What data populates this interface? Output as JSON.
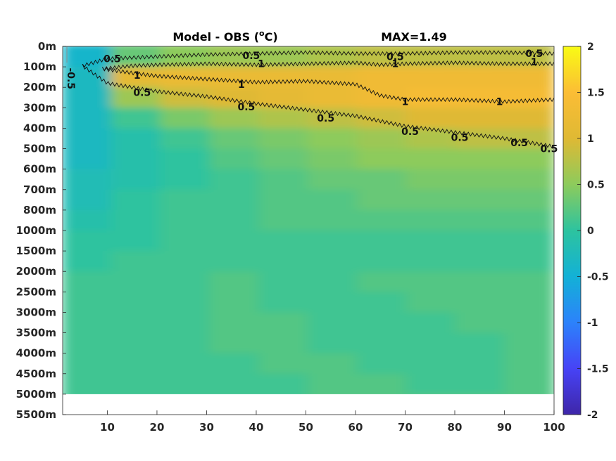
{
  "chart_data": {
    "type": "heatmap",
    "title": "Model - OBS (",
    "title_sup": "o",
    "title_unit": "C)",
    "max_label": "MAX=1.49",
    "x_ticks": [
      "10",
      "20",
      "30",
      "40",
      "50",
      "60",
      "70",
      "80",
      "90",
      "100"
    ],
    "x_tick_values": [
      10,
      20,
      30,
      40,
      50,
      60,
      70,
      80,
      90,
      100
    ],
    "xlim": [
      1,
      100
    ],
    "y_ticks": [
      "0m",
      "100m",
      "200m",
      "300m",
      "400m",
      "500m",
      "600m",
      "700m",
      "800m",
      "1000m",
      "1500m",
      "2000m",
      "2500m",
      "3000m",
      "3500m",
      "4000m",
      "4500m",
      "5000m",
      "5500m"
    ],
    "colorbar": {
      "range": [
        -2,
        2
      ],
      "ticks": [
        "2",
        "1.5",
        "1",
        "0.5",
        "0",
        "-0.5",
        "-1",
        "-1.5",
        "-2"
      ],
      "tick_values": [
        2,
        1.5,
        1,
        0.5,
        0,
        -0.5,
        -1,
        -1.5,
        -2
      ],
      "colormap": "parula"
    },
    "colormap_stops": [
      "#3e26a8",
      "#4743f6",
      "#2c82fb",
      "#13b1d6",
      "#2dc39f",
      "#8dcb5c",
      "#dfb934",
      "#fbbd35",
      "#f9fb14"
    ],
    "field_levels_by_depth": [
      {
        "depth": "0m",
        "values": [
          -0.4,
          0.3,
          0.5,
          0.6,
          0.6,
          0.7,
          0.8,
          0.8,
          0.8,
          0.8
        ]
      },
      {
        "depth": "100m",
        "values": [
          -0.3,
          1.1,
          1.2,
          1.2,
          1.2,
          1.2,
          1.3,
          1.3,
          1.3,
          1.3
        ]
      },
      {
        "depth": "200m",
        "values": [
          -0.3,
          0.6,
          0.9,
          1.0,
          1.1,
          1.2,
          1.3,
          1.4,
          1.4,
          1.4
        ]
      },
      {
        "depth": "300m",
        "values": [
          -0.3,
          0.1,
          0.4,
          0.6,
          0.7,
          0.8,
          0.9,
          1.0,
          1.0,
          1.0
        ]
      },
      {
        "depth": "400m",
        "values": [
          -0.3,
          -0.1,
          0.1,
          0.3,
          0.4,
          0.5,
          0.6,
          0.7,
          0.8,
          0.8
        ]
      },
      {
        "depth": "500m",
        "values": [
          -0.3,
          -0.1,
          0.0,
          0.2,
          0.3,
          0.4,
          0.5,
          0.5,
          0.5,
          0.5
        ]
      },
      {
        "depth": "600m",
        "values": [
          -0.2,
          -0.1,
          0.0,
          0.1,
          0.2,
          0.3,
          0.3,
          0.4,
          0.4,
          0.4
        ]
      },
      {
        "depth": "700m",
        "values": [
          -0.2,
          0.0,
          0.1,
          0.1,
          0.2,
          0.2,
          0.3,
          0.3,
          0.3,
          0.3
        ]
      },
      {
        "depth": "800m",
        "values": [
          -0.1,
          0.0,
          0.1,
          0.1,
          0.2,
          0.2,
          0.2,
          0.2,
          0.2,
          0.2
        ]
      },
      {
        "depth": "1000m",
        "values": [
          0.0,
          0.0,
          0.1,
          0.1,
          0.1,
          0.1,
          0.1,
          0.1,
          0.1,
          0.1
        ]
      },
      {
        "depth": "1500m",
        "values": [
          0.0,
          0.1,
          0.1,
          0.1,
          0.1,
          0.1,
          0.1,
          0.1,
          0.1,
          0.1
        ]
      },
      {
        "depth": "2000m",
        "values": [
          0.1,
          0.1,
          0.1,
          0.2,
          0.1,
          0.1,
          0.2,
          0.2,
          0.2,
          0.2
        ]
      },
      {
        "depth": "2500m",
        "values": [
          0.1,
          0.1,
          0.1,
          0.2,
          0.1,
          0.1,
          0.1,
          0.2,
          0.2,
          0.2
        ]
      },
      {
        "depth": "3000m",
        "values": [
          0.1,
          0.1,
          0.1,
          0.2,
          0.2,
          0.1,
          0.1,
          0.1,
          0.2,
          0.2
        ]
      },
      {
        "depth": "3500m",
        "values": [
          0.1,
          0.1,
          0.1,
          0.2,
          0.2,
          0.1,
          0.1,
          0.1,
          0.1,
          0.2
        ]
      },
      {
        "depth": "4000m",
        "values": [
          0.1,
          0.1,
          0.1,
          0.1,
          0.2,
          0.2,
          0.1,
          0.1,
          0.1,
          0.2
        ]
      },
      {
        "depth": "4500m",
        "values": [
          0.1,
          0.1,
          0.1,
          0.1,
          0.1,
          0.2,
          0.2,
          0.1,
          0.1,
          0.2
        ]
      },
      {
        "depth": "5000m",
        "values": [
          0.1,
          0.1,
          0.1,
          0.1,
          0.1,
          0.2,
          0.2,
          0.2,
          0.2,
          0.2
        ]
      }
    ],
    "contours": [
      {
        "level": "0.5",
        "label": "0.5",
        "x": [
          5,
          10,
          20,
          30,
          40,
          50,
          60,
          70,
          80,
          90,
          100
        ],
        "depth_index": [
          0.95,
          0.6,
          0.5,
          0.4,
          0.35,
          0.3,
          0.35,
          0.35,
          0.3,
          0.3,
          0.35
        ]
      },
      {
        "level": "0.5",
        "label": "0.5",
        "x": [
          5,
          10,
          20,
          30,
          40,
          50,
          60,
          70,
          80,
          90,
          100
        ],
        "depth_index": [
          0.95,
          1.8,
          2.2,
          2.45,
          2.8,
          3.1,
          3.4,
          3.9,
          4.2,
          4.5,
          4.9
        ]
      },
      {
        "level": "1",
        "label": "1",
        "x": [
          9,
          15,
          20,
          30,
          40,
          50,
          60,
          65,
          70,
          80,
          90,
          100
        ],
        "depth_index": [
          1.1,
          0.95,
          0.9,
          0.85,
          0.9,
          0.85,
          0.8,
          0.9,
          0.85,
          0.8,
          0.85,
          0.85
        ]
      },
      {
        "level": "1",
        "label": "1",
        "x": [
          9,
          15,
          20,
          30,
          40,
          50,
          60,
          65,
          70,
          80,
          90,
          100
        ],
        "depth_index": [
          1.1,
          1.3,
          1.45,
          1.6,
          1.75,
          1.7,
          1.85,
          2.4,
          2.6,
          2.6,
          2.7,
          2.6
        ]
      },
      {
        "level": "-0.5",
        "label": "-0.5",
        "x": [
          1.5,
          2.5,
          2.8,
          2.5
        ],
        "depth_index": [
          0.0,
          0.8,
          1.8,
          2.8
        ]
      }
    ],
    "contour_labels": [
      {
        "text": "0.5",
        "x": 11,
        "depth_index": 0.6
      },
      {
        "text": "0.5",
        "x": 39,
        "depth_index": 0.45
      },
      {
        "text": "0.5",
        "x": 68,
        "depth_index": 0.5
      },
      {
        "text": "0.5",
        "x": 96,
        "depth_index": 0.35
      },
      {
        "text": "1",
        "x": 16,
        "depth_index": 1.4
      },
      {
        "text": "1",
        "x": 41,
        "depth_index": 0.85
      },
      {
        "text": "1",
        "x": 68,
        "depth_index": 0.85
      },
      {
        "text": "1",
        "x": 96,
        "depth_index": 0.75
      },
      {
        "text": "1",
        "x": 37,
        "depth_index": 1.85
      },
      {
        "text": "1",
        "x": 70,
        "depth_index": 2.7
      },
      {
        "text": "1",
        "x": 89,
        "depth_index": 2.7
      },
      {
        "text": "0.5",
        "x": 17,
        "depth_index": 2.25
      },
      {
        "text": "0.5",
        "x": 38,
        "depth_index": 2.95
      },
      {
        "text": "0.5",
        "x": 54,
        "depth_index": 3.5
      },
      {
        "text": "0.5",
        "x": 71,
        "depth_index": 4.15
      },
      {
        "text": "0.5",
        "x": 81,
        "depth_index": 4.45
      },
      {
        "text": "0.5",
        "x": 93,
        "depth_index": 4.7
      },
      {
        "text": "0.5",
        "x": 99,
        "depth_index": 5.0
      },
      {
        "text": "-0.5",
        "x": 2,
        "depth_index": 1.4
      }
    ]
  }
}
